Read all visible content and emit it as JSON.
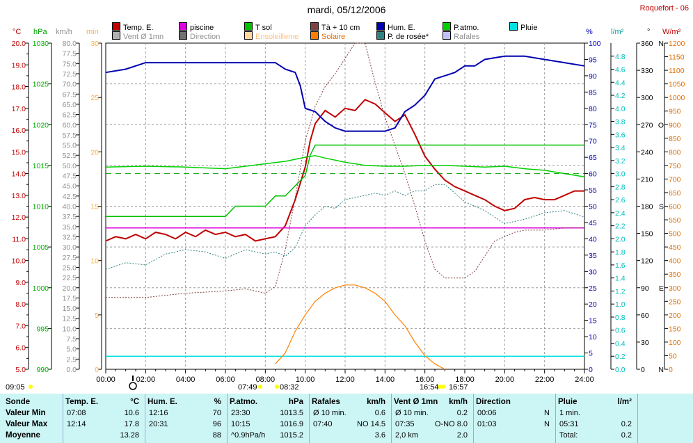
{
  "header": {
    "title": "mardi, 05/12/2006",
    "site": "Roquefort - 06"
  },
  "legend": [
    {
      "label": "Temp. E.",
      "color": "#c00000"
    },
    {
      "label": "piscine",
      "color": "#e000e0"
    },
    {
      "label": "T sol",
      "color": "#00c000"
    },
    {
      "label": "Tà + 10 cm",
      "color": "#804040"
    },
    {
      "label": "Hum. E.",
      "color": "#0000b0"
    },
    {
      "label": "P.atmo.",
      "color": "#00d000"
    },
    {
      "label": "Pluie",
      "color": "#00e0e0"
    },
    {
      "label": "Vent Ø 1mn",
      "color": "#b0b0b0"
    },
    {
      "label": "Direction",
      "color": "#707070"
    },
    {
      "label": "Ensoleilleme",
      "color": "#ffd8a0"
    },
    {
      "label": "Solaire",
      "color": "#ff8000"
    },
    {
      "label": "P. de rosée*",
      "color": "#308080"
    },
    {
      "label": "Rafales",
      "color": "#c0c0ff"
    }
  ],
  "axis_units": {
    "temp": "°C",
    "press": "hPa",
    "wind": "km/h",
    "sun": "min",
    "hum": "%",
    "rain": "l/m²",
    "dir": "°",
    "solar": "W/m²"
  },
  "axes": {
    "temp": {
      "min": 5.0,
      "max": 20.0,
      "ticks": [
        "5.0",
        "5.5",
        "6.0",
        "6.5",
        "7.0",
        "7.5",
        "8.0",
        "8.5",
        "9.0",
        "9.5",
        "10.0",
        "10.5",
        "11.0",
        "11.5",
        "12.0",
        "12.5",
        "13.0",
        "13.5",
        "14.0",
        "14.5",
        "15.0",
        "15.5",
        "16.0",
        "16.5",
        "17.0",
        "17.5",
        "18.0",
        "18.5",
        "19.0",
        "19.5",
        "20.0"
      ],
      "labeled_every": 2
    },
    "press": {
      "min": 990,
      "max": 1030,
      "ticks": [
        "990",
        "995",
        "1000",
        "1005",
        "1010",
        "1015",
        "1020",
        "1025",
        "1030"
      ]
    },
    "wind": {
      "min": 0,
      "max": 80,
      "ticks": [
        "0.0",
        "2.5",
        "5.0",
        "7.5",
        "10.0",
        "12.5",
        "15.0",
        "17.5",
        "20.0",
        "22.5",
        "25.0",
        "27.5",
        "30.0",
        "32.5",
        "35.0",
        "37.5",
        "40.0",
        "42.5",
        "45.0",
        "47.5",
        "50.0",
        "52.5",
        "55.0",
        "57.5",
        "60.0",
        "62.5",
        "65.0",
        "67.5",
        "70.0",
        "72.5",
        "75.0",
        "77.5",
        "80.0"
      ]
    },
    "sun": {
      "min": 0,
      "max": 30,
      "ticks": [
        "0",
        "5",
        "10",
        "15",
        "20",
        "25",
        "30"
      ]
    },
    "hum": {
      "min": 0,
      "max": 100,
      "ticks": [
        "0",
        "5",
        "10",
        "15",
        "20",
        "25",
        "30",
        "35",
        "40",
        "45",
        "50",
        "55",
        "60",
        "65",
        "70",
        "75",
        "80",
        "85",
        "90",
        "95",
        "100"
      ]
    },
    "rain": {
      "min": 0,
      "max": 5.0,
      "ticks": [
        "0.0",
        "0.2",
        "0.4",
        "0.6",
        "0.8",
        "1.0",
        "1.2",
        "1.4",
        "1.6",
        "1.8",
        "2.0",
        "2.2",
        "2.4",
        "2.6",
        "2.8",
        "3.0",
        "3.2",
        "3.4",
        "3.6",
        "3.8",
        "4.0",
        "4.2",
        "4.4",
        "4.6",
        "4.8"
      ]
    },
    "dir": {
      "min": 0,
      "max": 360,
      "ticks": [
        "0",
        "30",
        "60",
        "90",
        "120",
        "150",
        "180",
        "210",
        "240",
        "270",
        "300",
        "330",
        "360"
      ],
      "compass": {
        "0": "N",
        "90": "E",
        "180": "S",
        "270": "O",
        "360": "N"
      }
    },
    "solar": {
      "min": 0,
      "max": 1200,
      "ticks": [
        "0",
        "50",
        "100",
        "150",
        "200",
        "250",
        "300",
        "350",
        "400",
        "450",
        "500",
        "550",
        "600",
        "650",
        "700",
        "750",
        "800",
        "850",
        "900",
        "950",
        "1000",
        "1050",
        "1100",
        "1150",
        "1200"
      ]
    }
  },
  "time_ticks": [
    "00:00",
    "02:00",
    "04:00",
    "06:00",
    "08:00",
    "10:00",
    "12:00",
    "14:00",
    "16:00",
    "18:00",
    "20:00",
    "22:00",
    "24:00"
  ],
  "sun_times": [
    {
      "label": "09:05",
      "pos": "left"
    },
    {
      "label": "07:49",
      "pos": "sunrise"
    },
    {
      "label": "08:32",
      "pos": "sunrise2"
    },
    {
      "label": "16:54",
      "pos": "sunset"
    },
    {
      "label": "16:57",
      "pos": "sunset2"
    }
  ],
  "chart_data": {
    "type": "line",
    "title": "mardi, 05/12/2006",
    "x_unit": "hour",
    "xlim": [
      0,
      24
    ],
    "grid": true,
    "series": [
      {
        "name": "Temp. E.",
        "axis": "temp",
        "x": [
          0,
          0.5,
          1,
          1.5,
          2,
          2.5,
          3,
          3.5,
          4,
          4.5,
          5,
          5.5,
          6,
          6.5,
          7,
          7.5,
          8,
          8.5,
          9,
          9.5,
          10,
          10.25,
          10.5,
          11,
          11.5,
          12,
          12.5,
          13,
          13.5,
          14,
          14.5,
          15,
          15.5,
          16,
          16.5,
          17,
          17.5,
          18,
          18.5,
          19,
          19.5,
          20,
          20.5,
          21,
          21.5,
          22,
          22.5,
          23,
          23.5,
          24
        ],
        "y": [
          10.9,
          11.1,
          11.0,
          11.2,
          11.0,
          11.3,
          11.2,
          11.0,
          11.3,
          11.1,
          11.4,
          11.2,
          11.3,
          11.1,
          11.2,
          10.9,
          11.0,
          11.1,
          11.6,
          12.8,
          14.3,
          15.5,
          16.3,
          16.9,
          16.6,
          17.0,
          16.9,
          17.4,
          17.2,
          16.8,
          16.4,
          16.7,
          15.8,
          14.8,
          14.2,
          13.7,
          13.4,
          13.2,
          13.0,
          12.8,
          12.5,
          12.3,
          12.4,
          12.8,
          12.9,
          12.8,
          12.8,
          13.0,
          13.2,
          13.2
        ]
      },
      {
        "name": "piscine",
        "axis": "temp",
        "x": [
          0,
          24
        ],
        "y": [
          11.5,
          11.5
        ]
      },
      {
        "name": "T sol",
        "axis": "wind",
        "x": [
          0,
          6,
          6.5,
          7,
          7.5,
          8,
          8.5,
          9,
          9.5,
          10,
          10.25,
          10.5,
          11,
          12,
          13,
          14,
          15,
          15.5,
          16,
          16.5,
          17,
          17.5,
          18,
          18.5,
          19,
          19.5,
          20,
          20.5,
          21,
          22,
          23,
          24
        ],
        "y": [
          37.5,
          37.5,
          40,
          40,
          40,
          40,
          42.5,
          42.5,
          45,
          47.5,
          52.5,
          55,
          55,
          55,
          55,
          55,
          55,
          55,
          55,
          55,
          55,
          55,
          55,
          55,
          55,
          55,
          55,
          55,
          55,
          55,
          55,
          55
        ]
      },
      {
        "name": "Tà + 10 cm",
        "axis": "temp",
        "x": [
          0,
          2,
          4,
          6,
          7,
          8,
          8.5,
          9,
          9.5,
          10,
          10.5,
          11,
          11.5,
          12,
          12.5,
          13,
          13.5,
          14,
          14.5,
          15,
          15.5,
          16,
          16.5,
          17,
          17.5,
          18,
          18.5,
          19,
          19.5,
          20,
          20.5,
          21,
          22,
          23,
          24
        ],
        "y": [
          8.3,
          8.3,
          8.5,
          8.6,
          8.7,
          8.5,
          8.8,
          10.5,
          12.9,
          15.5,
          17.1,
          18.0,
          18.6,
          19.3,
          20.0,
          20.0,
          18.2,
          16.6,
          15.3,
          14.0,
          12.5,
          10.9,
          9.6,
          9.2,
          9.2,
          9.2,
          9.5,
          10.2,
          10.9,
          11.1,
          11.3,
          11.4,
          11.4,
          11.5,
          11.5
        ]
      },
      {
        "name": "Hum. E.",
        "axis": "hum",
        "x": [
          0,
          1,
          2,
          3,
          4,
          5,
          6,
          7,
          8,
          8.5,
          9,
          9.5,
          9.75,
          10,
          10.5,
          11,
          11.5,
          12,
          12.5,
          13,
          13.5,
          14,
          14.5,
          15,
          15.5,
          16,
          16.5,
          17,
          17.5,
          18,
          18.5,
          19,
          20,
          21,
          22,
          23,
          24
        ],
        "y": [
          91,
          92,
          94,
          94,
          94,
          94,
          94,
          94,
          94,
          94,
          92,
          91,
          87,
          80,
          79,
          76,
          74,
          73,
          73,
          73,
          73,
          73,
          74,
          79,
          81,
          84,
          89,
          90,
          91,
          93,
          93,
          95,
          96,
          96,
          95,
          94,
          93
        ]
      },
      {
        "name": "P.atmo.",
        "axis": "press",
        "x": [
          0,
          2,
          4,
          6,
          8,
          9,
          10,
          10.5,
          11,
          12,
          13,
          14,
          15,
          16,
          17,
          18,
          19,
          20,
          21,
          22,
          23,
          24
        ],
        "y": [
          1014.8,
          1014.9,
          1014.8,
          1014.6,
          1015.2,
          1015.5,
          1016.0,
          1016.2,
          1015.9,
          1015.4,
          1015.0,
          1014.9,
          1014.9,
          1015.0,
          1015.0,
          1014.9,
          1014.8,
          1014.9,
          1014.6,
          1014.4,
          1014.0,
          1013.6
        ]
      },
      {
        "name": "Pluie",
        "axis": "rain",
        "x": [
          0,
          24
        ],
        "y": [
          0.2,
          0.2
        ]
      },
      {
        "name": "Solaire",
        "axis": "solar",
        "x": [
          8.5,
          9,
          9.5,
          10,
          10.5,
          11,
          11.5,
          12,
          12.5,
          13,
          13.5,
          14,
          14.5,
          15,
          15.5,
          16,
          16.5,
          17
        ],
        "y": [
          20,
          60,
          140,
          200,
          250,
          280,
          300,
          310,
          310,
          300,
          280,
          250,
          200,
          160,
          100,
          50,
          20,
          0
        ]
      },
      {
        "name": "P. de rosée*",
        "axis": "temp",
        "x": [
          0,
          1,
          2,
          3,
          4,
          5,
          6,
          7,
          8,
          8.5,
          9,
          9.5,
          10,
          10.5,
          11,
          11.5,
          12,
          12.5,
          13,
          13.5,
          14,
          14.5,
          15,
          15.5,
          16,
          16.5,
          17,
          17.5,
          18,
          19,
          20,
          21,
          22,
          23,
          24
        ],
        "y": [
          9.6,
          9.9,
          9.8,
          10.3,
          10.5,
          10.4,
          10.1,
          10.5,
          10.3,
          10.4,
          10.2,
          10.6,
          11.6,
          12.1,
          12.5,
          12.4,
          12.8,
          12.9,
          13.0,
          13.1,
          13.0,
          13.2,
          13.0,
          13.2,
          13.2,
          13.5,
          13.5,
          13.1,
          12.7,
          12.3,
          11.7,
          11.9,
          12.2,
          12.3,
          12.0
        ]
      }
    ]
  },
  "table": {
    "row_labels": [
      "Sonde",
      "Valeur Min",
      "Valeur Max",
      "Moyenne"
    ],
    "columns": [
      {
        "title": "Temp. E.",
        "unit": "°C",
        "rows": [
          [
            "07:08",
            "10.6"
          ],
          [
            "12:14",
            "17.8"
          ],
          [
            "",
            "13.28"
          ]
        ]
      },
      {
        "title": "Hum. E.",
        "unit": "%",
        "rows": [
          [
            "12:16",
            "70"
          ],
          [
            "20:31",
            "96"
          ],
          [
            "",
            "88"
          ]
        ]
      },
      {
        "title": "P.atmo.",
        "unit": "hPa",
        "rows": [
          [
            "23:30",
            "1013.5"
          ],
          [
            "10:15",
            "1016.9"
          ],
          [
            "^0.9hPa/h",
            "1015.2"
          ]
        ]
      },
      {
        "title": "Rafales",
        "unit": "km/h",
        "rows": [
          [
            "Ø 10 min.",
            "0.6"
          ],
          [
            "07:40",
            "NO 14.5"
          ],
          [
            "",
            "3.6"
          ]
        ]
      },
      {
        "title": "Vent Ø 1mn",
        "unit": "km/h",
        "rows": [
          [
            "Ø 10 min.",
            "0.2"
          ],
          [
            "07:35",
            "O-NO 8.0"
          ],
          [
            "2,0 km",
            "2.0"
          ]
        ]
      },
      {
        "title": "Direction",
        "unit": "",
        "rows": [
          [
            "00:06",
            "N"
          ],
          [
            "01:03",
            "N"
          ],
          [
            "",
            ""
          ]
        ]
      },
      {
        "title": "Pluie",
        "unit": "l/m²",
        "rows": [
          [
            "1 min.",
            ""
          ],
          [
            "05:31",
            "0.2"
          ],
          [
            "Total:",
            "0.2"
          ]
        ]
      }
    ]
  }
}
